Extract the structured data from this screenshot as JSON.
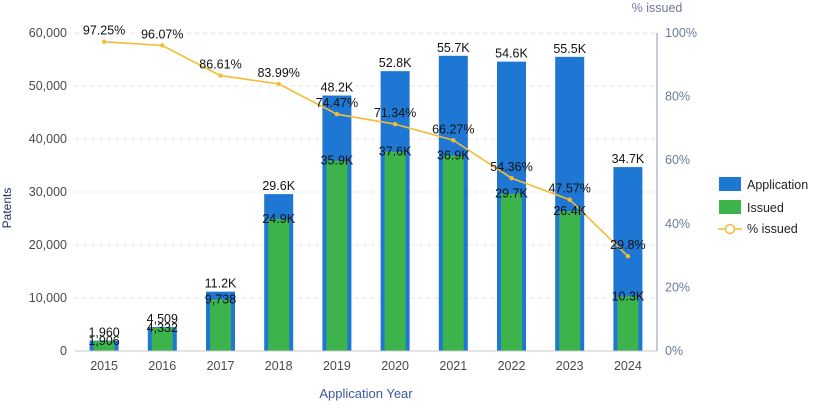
{
  "chart_data": {
    "type": "bar",
    "xlabel": "Application Year",
    "ylabel": "Patents",
    "y2label": "% issued",
    "ylim": [
      0,
      60000
    ],
    "y2lim": [
      0,
      100
    ],
    "grid": "horizontal dashed",
    "legend_position": "right",
    "categories": [
      "2015",
      "2016",
      "2017",
      "2018",
      "2019",
      "2020",
      "2021",
      "2022",
      "2023",
      "2024"
    ],
    "y_ticks": [
      "0",
      "10,000",
      "20,000",
      "30,000",
      "40,000",
      "50,000",
      "60,000"
    ],
    "y2_ticks": [
      "0%",
      "20%",
      "40%",
      "60%",
      "80%",
      "100%"
    ],
    "series": [
      {
        "name": "Application",
        "kind": "bar",
        "color": "#1f77d4",
        "values": [
          1960,
          4509,
          11200,
          29600,
          48200,
          52800,
          55700,
          54600,
          55500,
          34700
        ],
        "labels": [
          "1,960",
          "4,509",
          "11.2K",
          "29.6K",
          "48.2K",
          "52.8K",
          "55.7K",
          "54.6K",
          "55.5K",
          "34.7K"
        ]
      },
      {
        "name": "Issued",
        "kind": "bar",
        "color": "#3cb44b",
        "values": [
          1906,
          4332,
          9738,
          24900,
          35900,
          37600,
          36900,
          29700,
          26400,
          10300
        ],
        "labels": [
          "1,906",
          "4,332",
          "9,738",
          "24.9K",
          "35.9K",
          "37.6K",
          "36.9K",
          "29.7K",
          "26.4K",
          "10.3K"
        ]
      },
      {
        "name": "% issued",
        "kind": "line",
        "axis": "right",
        "color": "#f2bc35",
        "values": [
          97.25,
          96.07,
          86.61,
          83.99,
          74.47,
          71.34,
          66.27,
          54.36,
          47.57,
          29.8
        ],
        "labels": [
          "97.25%",
          "96.07%",
          "86.61%",
          "83.99%",
          "74.47%",
          "71.34%",
          "66.27%",
          "54.36%",
          "47.57%",
          "29.8%"
        ]
      }
    ]
  }
}
